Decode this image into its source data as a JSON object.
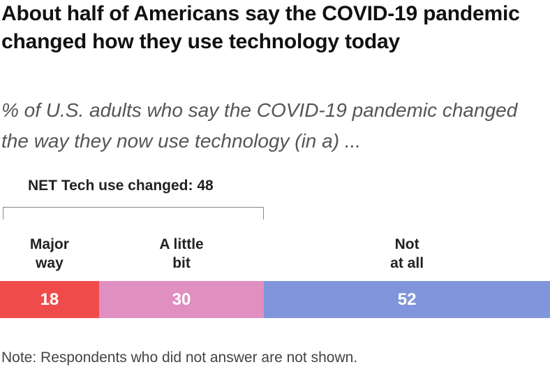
{
  "title": "About half of Americans say the COVID-19 pandemic changed how they use technology today",
  "subtitle": "% of U.S. adults who say the COVID-19 pandemic changed the way they now use technology (in a) ...",
  "net_label": "NET Tech use changed: 48",
  "note": "Note: Respondents who did not answer are not shown.",
  "colors": {
    "major_way": "#f04b4b",
    "a_little_bit": "#e08fc1",
    "not_at_all": "#8095db"
  },
  "chart_data": {
    "type": "bar",
    "orientation": "horizontal-stacked",
    "categories": [
      "Major\nway",
      "A little\nbit",
      "Not\nat all"
    ],
    "values": [
      18,
      30,
      52
    ],
    "value_labels": [
      "18",
      "30",
      "52"
    ],
    "title": "About half of Americans say the COVID-19 pandemic changed how they use technology today",
    "xlim": [
      0,
      100
    ],
    "grid": false,
    "legend": "none"
  }
}
